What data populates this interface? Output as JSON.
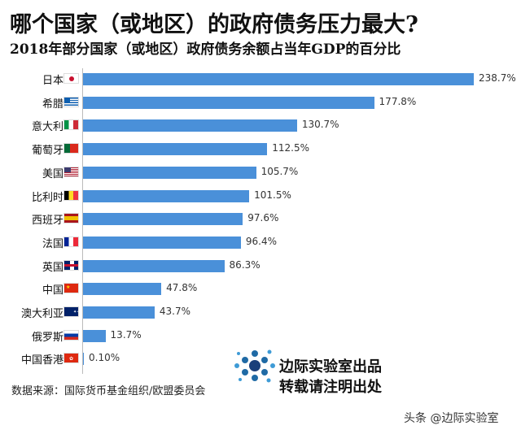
{
  "chart_data": {
    "type": "bar",
    "orientation": "horizontal",
    "title": "哪个国家（或地区）的政府债务压力最大?",
    "subtitle": "2018年部分国家（或地区）政府债务余额占当年GDP的百分比",
    "categories": [
      "日本",
      "希腊",
      "意大利",
      "葡萄牙",
      "美国",
      "比利时",
      "西班牙",
      "法国",
      "英国",
      "中国",
      "澳大利亚",
      "俄罗斯",
      "中国香港"
    ],
    "values": [
      238.7,
      177.8,
      130.7,
      112.5,
      105.7,
      101.5,
      97.6,
      96.4,
      86.3,
      47.8,
      43.7,
      13.7,
      0.1
    ],
    "labels": [
      "238.7%",
      "177.8%",
      "130.7%",
      "112.5%",
      "105.7%",
      "101.5%",
      "97.6%",
      "96.4%",
      "86.3%",
      "47.8%",
      "43.7%",
      "13.7%",
      "0.10%"
    ],
    "flags": [
      "japan",
      "greece",
      "italy",
      "portugal",
      "usa",
      "belgium",
      "spain",
      "france",
      "uk",
      "china",
      "australia",
      "russia",
      "hongkong"
    ],
    "bar_color": "#4a90d9",
    "xlim": [
      0,
      240
    ],
    "grid": false,
    "source": "数据来源：国际货币基金组织/欧盟委员会"
  },
  "branding": {
    "line1": "边际实验室出品",
    "line2": "转载请注明出处",
    "watermark": "头条 @边际实验室"
  }
}
